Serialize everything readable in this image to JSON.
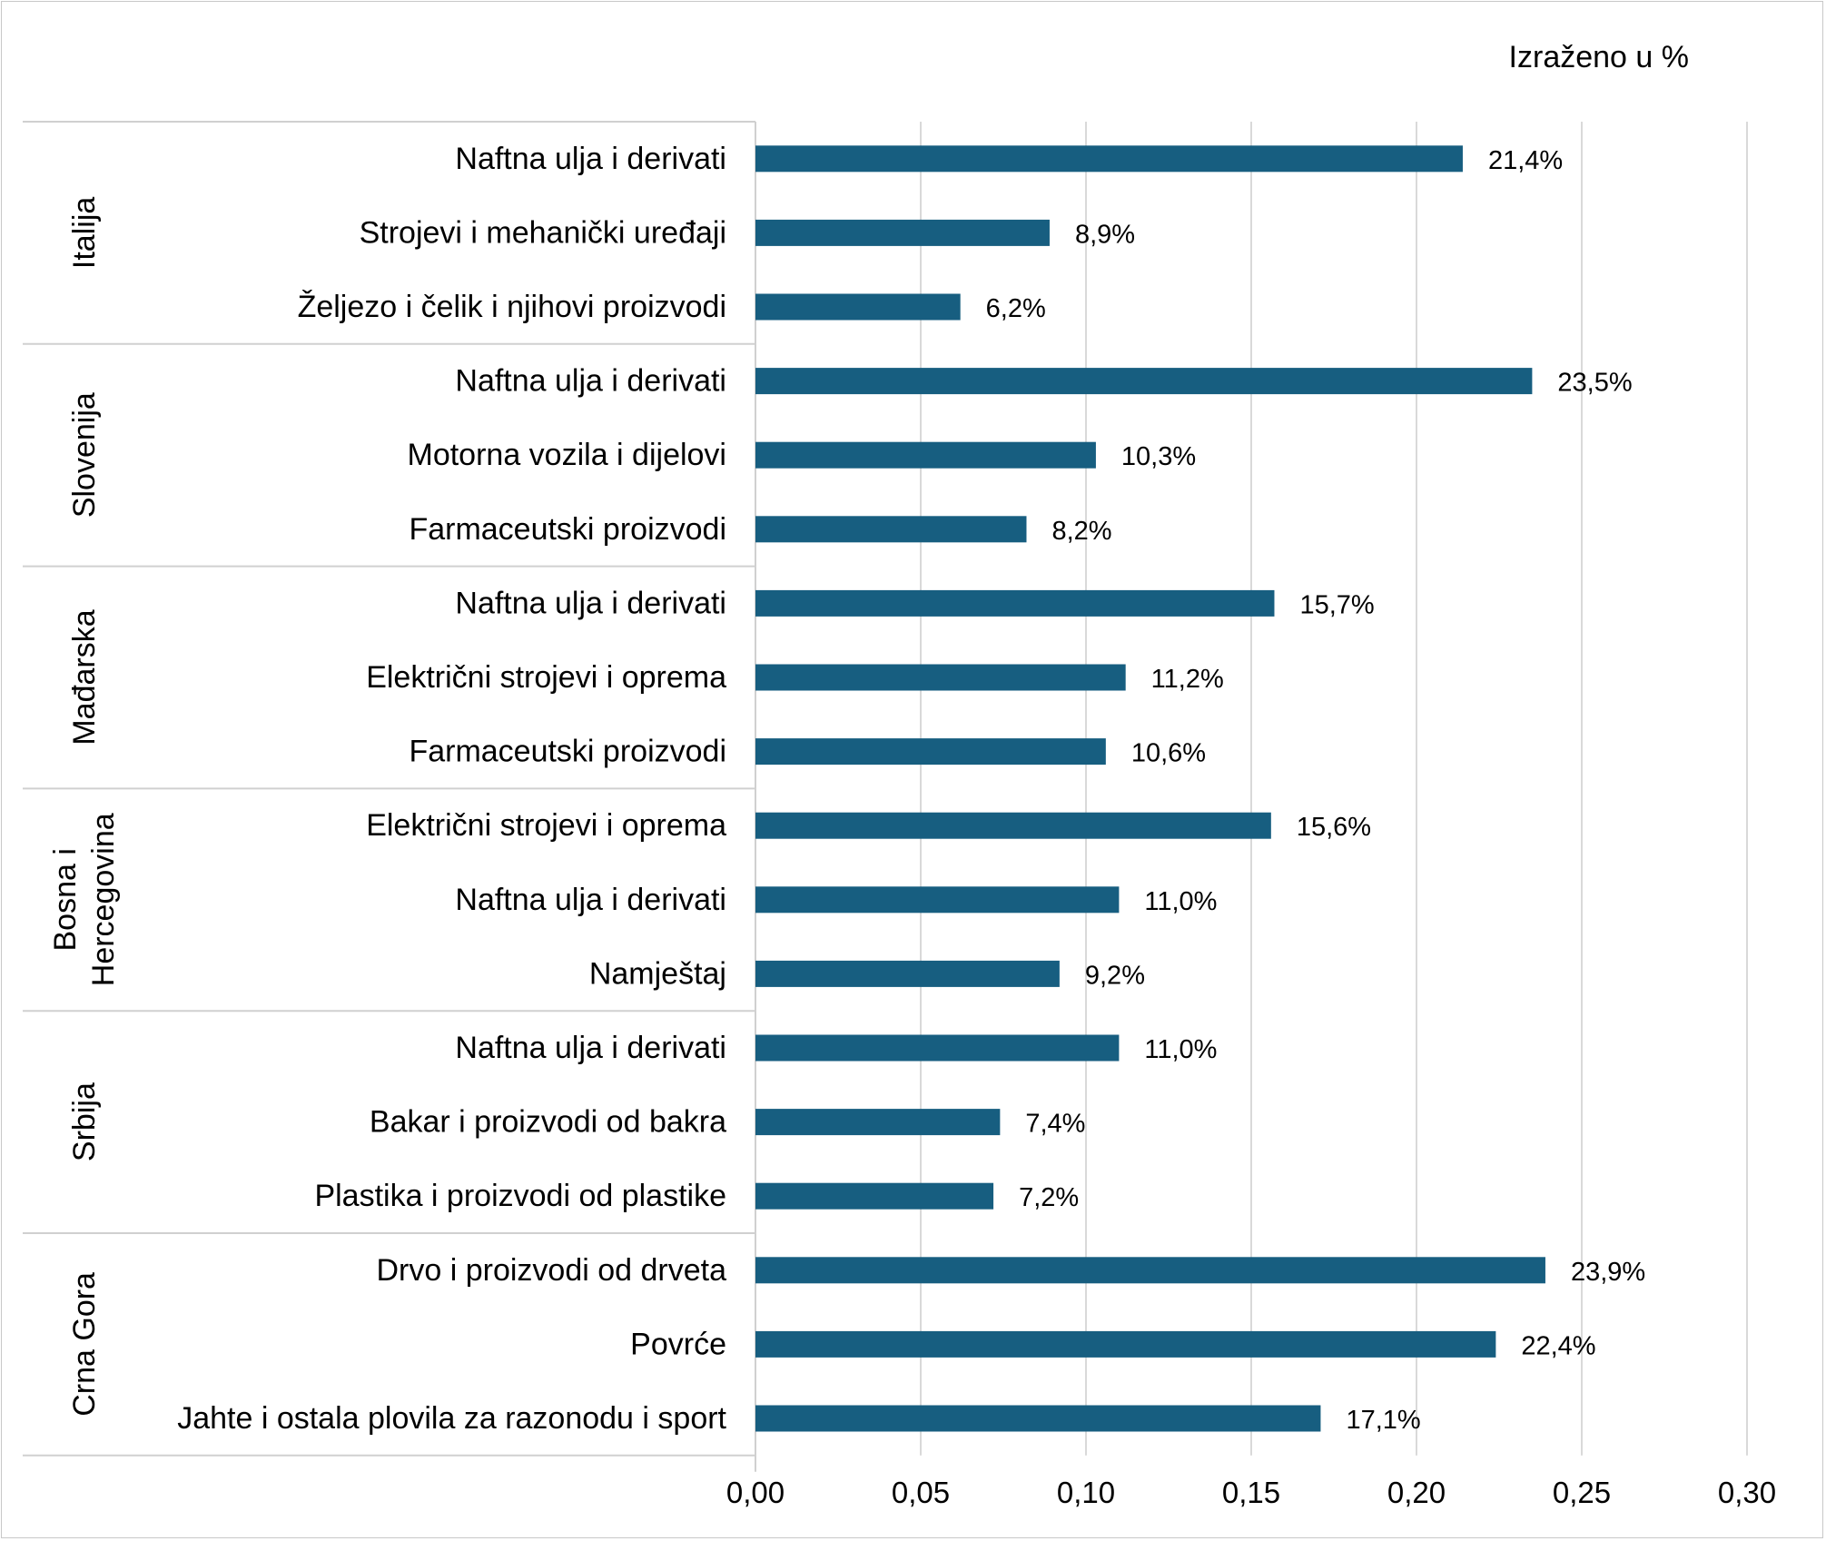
{
  "chart_data": {
    "type": "bar",
    "orientation": "horizontal",
    "unit_note": "Izraženo u %",
    "xlim": [
      0,
      0.3
    ],
    "xticks": [
      "0,00",
      "0,05",
      "0,10",
      "0,15",
      "0,20",
      "0,25",
      "0,30"
    ],
    "grid": true,
    "bar_color": "#175e80",
    "groups": [
      {
        "name": "Italija",
        "items": [
          {
            "label": "Naftna ulja i derivati",
            "value": 0.214,
            "value_label": "21,4%"
          },
          {
            "label": "Strojevi i mehanički uređaji",
            "value": 0.089,
            "value_label": "8,9%"
          },
          {
            "label": "Željezo i čelik i njihovi proizvodi",
            "value": 0.062,
            "value_label": "6,2%"
          }
        ]
      },
      {
        "name": "Slovenija",
        "items": [
          {
            "label": "Naftna ulja i derivati",
            "value": 0.235,
            "value_label": "23,5%"
          },
          {
            "label": "Motorna vozila i dijelovi",
            "value": 0.103,
            "value_label": "10,3%"
          },
          {
            "label": "Farmaceutski proizvodi",
            "value": 0.082,
            "value_label": "8,2%"
          }
        ]
      },
      {
        "name": "Mađarska",
        "items": [
          {
            "label": "Naftna ulja i derivati",
            "value": 0.157,
            "value_label": "15,7%"
          },
          {
            "label": "Električni strojevi i oprema",
            "value": 0.112,
            "value_label": "11,2%"
          },
          {
            "label": "Farmaceutski proizvodi",
            "value": 0.106,
            "value_label": "10,6%"
          }
        ]
      },
      {
        "name": "Bosna i Hercegovina",
        "name_lines": [
          "Bosna i",
          "Hercegovina"
        ],
        "items": [
          {
            "label": "Električni strojevi i oprema",
            "value": 0.156,
            "value_label": "15,6%"
          },
          {
            "label": "Naftna ulja i derivati",
            "value": 0.11,
            "value_label": "11,0%"
          },
          {
            "label": "Namještaj",
            "value": 0.092,
            "value_label": "9,2%"
          }
        ]
      },
      {
        "name": "Srbija",
        "items": [
          {
            "label": "Naftna ulja i derivati",
            "value": 0.11,
            "value_label": "11,0%"
          },
          {
            "label": "Bakar i proizvodi od bakra",
            "value": 0.074,
            "value_label": "7,4%"
          },
          {
            "label": "Plastika i proizvodi od plastike",
            "value": 0.072,
            "value_label": "7,2%"
          }
        ]
      },
      {
        "name": "Crna Gora",
        "items": [
          {
            "label": "Drvo i proizvodi od drveta",
            "value": 0.239,
            "value_label": "23,9%"
          },
          {
            "label": "Povrće",
            "value": 0.224,
            "value_label": "22,4%"
          },
          {
            "label": "Jahte i ostala plovila za razonodu i sport",
            "value": 0.171,
            "value_label": "17,1%"
          }
        ]
      }
    ]
  }
}
